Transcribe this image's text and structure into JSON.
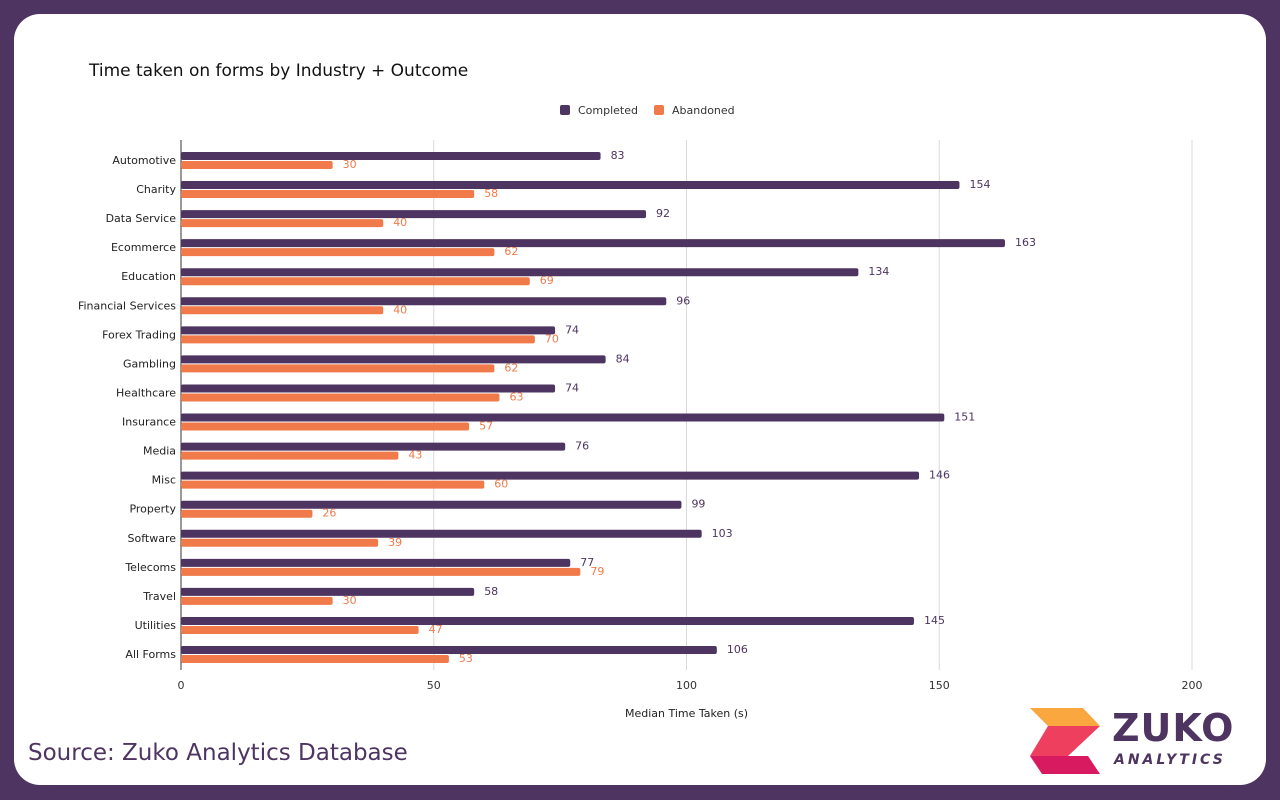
{
  "chart_data": {
    "type": "bar",
    "orientation": "horizontal",
    "title": "Time taken on forms by Industry + Outcome",
    "xlabel": "Median Time Taken (s)",
    "ylabel": "",
    "xlim": [
      0,
      200
    ],
    "xticks": [
      0,
      50,
      100,
      150,
      200
    ],
    "grid": true,
    "legend_position": "top",
    "categories": [
      "Automotive",
      "Charity",
      "Data Service",
      "Ecommerce",
      "Education",
      "Financial Services",
      "Forex Trading",
      "Gambling",
      "Healthcare",
      "Insurance",
      "Media",
      "Misc",
      "Property",
      "Software",
      "Telecoms",
      "Travel",
      "Utilities",
      "All Forms"
    ],
    "series": [
      {
        "name": "Completed",
        "color": "#4d3461",
        "values": [
          83,
          154,
          92,
          163,
          134,
          96,
          74,
          84,
          74,
          151,
          76,
          146,
          99,
          103,
          77,
          58,
          145,
          106
        ]
      },
      {
        "name": "Abandoned",
        "color": "#f07a4a",
        "values": [
          30,
          58,
          40,
          62,
          69,
          40,
          70,
          62,
          63,
          57,
          43,
          60,
          26,
          39,
          79,
          30,
          47,
          53
        ]
      }
    ]
  },
  "footer": {
    "source": "Source: Zuko Analytics Database"
  },
  "logo": {
    "name": "ZUKO",
    "sub": "ANALYTICS"
  }
}
